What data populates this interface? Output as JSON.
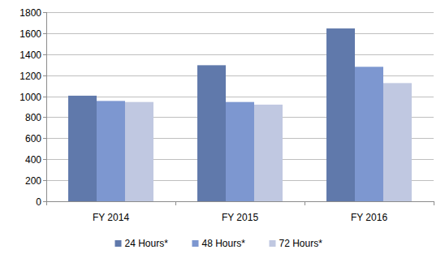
{
  "chart_data": {
    "type": "bar",
    "categories": [
      "FY 2014",
      "FY 2015",
      "FY 2016"
    ],
    "series": [
      {
        "name": "24 Hours*",
        "color": "#6079ab",
        "values": [
          1005,
          1295,
          1645
        ]
      },
      {
        "name": "48 Hours*",
        "color": "#7d97d0",
        "values": [
          955,
          945,
          1280
        ]
      },
      {
        "name": "72 Hours*",
        "color": "#c0c8e1",
        "values": [
          945,
          920,
          1125
        ]
      }
    ],
    "ylim": [
      0,
      1800
    ],
    "yticks": [
      0,
      200,
      400,
      600,
      800,
      1000,
      1200,
      1400,
      1600,
      1800
    ],
    "grid": true,
    "legend": "bottom"
  }
}
